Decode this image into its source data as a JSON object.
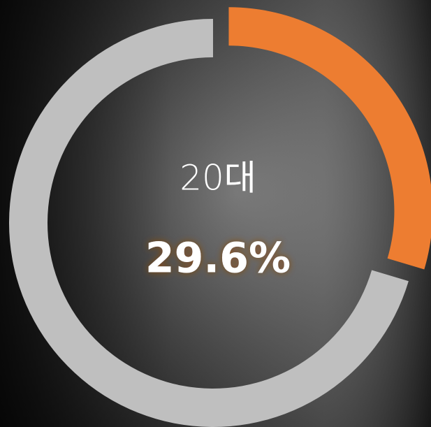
{
  "chart_data": {
    "type": "donut",
    "categories": [
      "20대"
    ],
    "values": [
      29.6
    ],
    "value_labels": [
      "29.6%"
    ],
    "color": "#ed7d31",
    "track_color": "#bfbfbf"
  }
}
